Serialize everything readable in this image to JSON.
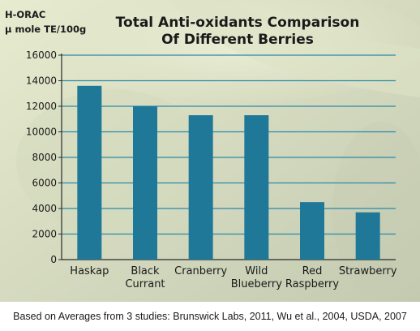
{
  "colors": {
    "bar": "#1f7898",
    "grid": "#2a8aa8",
    "axis": "#2a2a2a",
    "text": "#1a1a1a"
  },
  "chart_data": {
    "type": "bar",
    "title_lines": [
      "Total Anti-oxidants Comparison",
      "Of Different Berries"
    ],
    "ylabel_lines": [
      "H-ORAC",
      "µ mole TE/100g"
    ],
    "categories": [
      [
        "Haskap"
      ],
      [
        "Black",
        "Currant"
      ],
      [
        "Cranberry"
      ],
      [
        "Wild",
        "Blueberry"
      ],
      [
        "Red",
        "Raspberry"
      ],
      [
        "Strawberry"
      ]
    ],
    "values": [
      13600,
      12000,
      11300,
      11300,
      4500,
      3700
    ],
    "ylim": [
      0,
      16000
    ],
    "yticks": [
      "0",
      "2000",
      "4000",
      "6000",
      "8000",
      "10000",
      "12000",
      "14000",
      "16000"
    ],
    "grid": true,
    "footnote": "Based on Averages from 3 studies: Brunswick Labs, 2011, Wu et al., 2004, USDA, 2007"
  }
}
